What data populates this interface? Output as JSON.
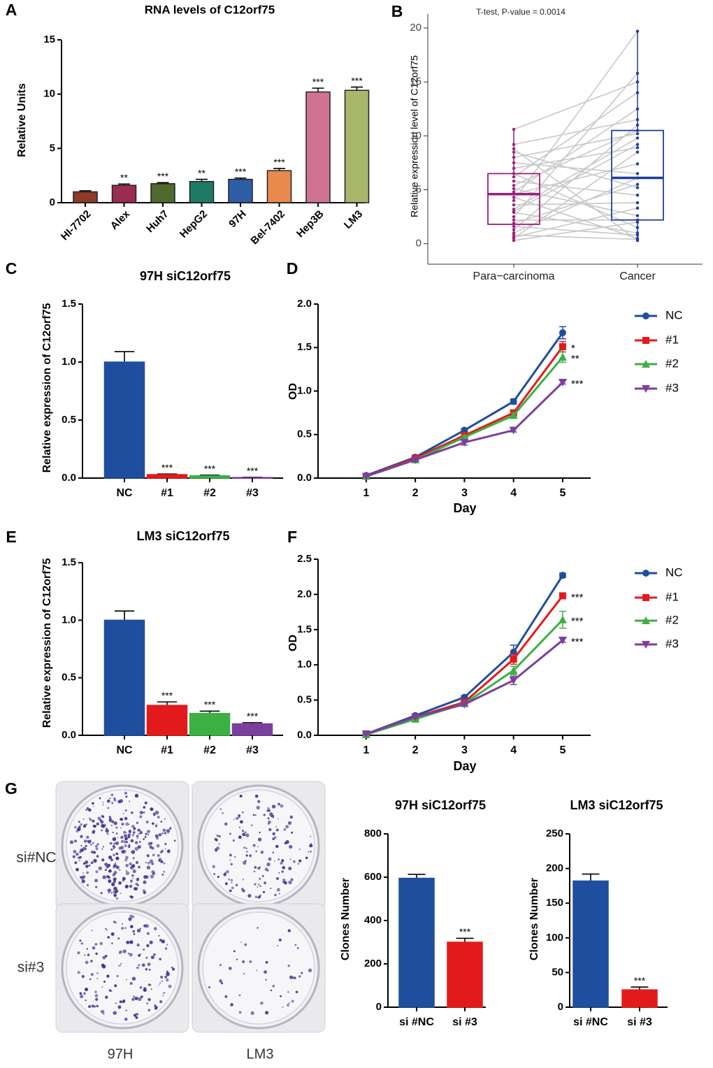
{
  "chart_data": [
    {
      "panel": "A",
      "type": "bar",
      "title": "RNA levels of C12orf75",
      "ylabel": "Relative Units",
      "categories": [
        "HI-7702",
        "Alex",
        "Huh7",
        "HepG2",
        "97H",
        "Bel-7402",
        "Hep3B",
        "LM3"
      ],
      "values": [
        1.0,
        1.6,
        1.75,
        1.95,
        2.15,
        2.95,
        10.2,
        10.35
      ],
      "errors": [
        0.1,
        0.12,
        0.1,
        0.2,
        0.12,
        0.2,
        0.35,
        0.3
      ],
      "sig_labels": [
        null,
        "**",
        "***",
        "**",
        "***",
        "***",
        "***",
        "***"
      ],
      "colors": [
        "#8e3b2a",
        "#9b2b52",
        "#4e6a2c",
        "#1f7a67",
        "#2f5ea8",
        "#e98a4c",
        "#d07391",
        "#a8b76b"
      ],
      "ylim": [
        0,
        15
      ],
      "yticks": [
        0,
        5,
        10,
        15
      ]
    },
    {
      "panel": "B",
      "type": "box",
      "title": "T-test, P-value = 0.0014",
      "ylabel": "Relative expression level of C12orf75",
      "categories": [
        "Para−carcinoma",
        "Cancer"
      ],
      "colors": [
        "#9b1f7a",
        "#1f3f9e"
      ],
      "boxes": [
        {
          "min": 0.2,
          "q1": 1.8,
          "median": 4.6,
          "q3": 6.5,
          "max": 10.6
        },
        {
          "min": 0.2,
          "q1": 2.2,
          "median": 6.1,
          "q3": 10.5,
          "max": 19.7
        }
      ],
      "values": [
        [
          0.3,
          0.5,
          0.8,
          1.0,
          1.3,
          1.6,
          1.9,
          2.2,
          2.5,
          2.9,
          3.2,
          3.6,
          4.0,
          4.3,
          4.6,
          4.8,
          5.1,
          5.4,
          5.8,
          6.2,
          6.5,
          7.0,
          7.5,
          8.0,
          8.5,
          8.8,
          9.2,
          10.6,
          0.6,
          3.0
        ],
        [
          2.0,
          8.5,
          0.4,
          6.1,
          11.0,
          0.8,
          5.5,
          2.2,
          15.8,
          1.0,
          9.8,
          3.8,
          19.7,
          0.5,
          7.4,
          12.5,
          2.6,
          10.5,
          4.5,
          14.0,
          1.5,
          8.9,
          6.5,
          10.2,
          5.2,
          0.3,
          11.5,
          15.0,
          3.3,
          9.2
        ]
      ],
      "ylim": [
        -1.9,
        21.3
      ],
      "yticks": [
        0,
        5,
        10,
        15,
        20
      ]
    },
    {
      "panel": "C",
      "type": "bar",
      "title": "97H siC12orf75",
      "ylabel": "Relative expression of C12orf75",
      "categories": [
        "NC",
        "#1",
        "#2",
        "#3"
      ],
      "values": [
        1.0,
        0.03,
        0.02,
        0.005
      ],
      "errors": [
        0.09,
        0.005,
        0.005,
        0.002
      ],
      "sig_labels": [
        null,
        "***",
        "***",
        "***"
      ],
      "colors": [
        "#1f4e9e",
        "#e31a1c",
        "#3cb043",
        "#7b3f9e"
      ],
      "ylim": [
        0,
        1.5
      ],
      "yticks": [
        {
          "value": 0,
          "label": "0.0"
        },
        0.5,
        {
          "value": 1,
          "label": "1.0"
        },
        1.5
      ]
    },
    {
      "panel": "D",
      "type": "line",
      "ylabel": "OD",
      "xlabel": "Day",
      "x": [
        1,
        2,
        3,
        4,
        5
      ],
      "xlim": [
        0.02,
        5.57
      ],
      "xticks": [
        1,
        2,
        3,
        4,
        5
      ],
      "ylim": [
        0,
        2
      ],
      "yticks": [
        {
          "value": 0,
          "label": "0.0"
        },
        0.5,
        {
          "value": 1,
          "label": "1.0"
        },
        1.5,
        {
          "value": 2,
          "label": "2.0"
        }
      ],
      "series": [
        {
          "name": "NC",
          "color": "#1f4e9e",
          "marker": "circle",
          "values": [
            0.03,
            0.24,
            0.55,
            0.88,
            1.67
          ],
          "errors": [
            0.01,
            0.02,
            0.02,
            0.03,
            0.07
          ]
        },
        {
          "name": "#1",
          "color": "#e31a1c",
          "marker": "square",
          "values": [
            0.02,
            0.23,
            0.49,
            0.75,
            1.51
          ],
          "errors": [
            0.01,
            0.02,
            0.02,
            0.03,
            0.06
          ],
          "annotation": "*"
        },
        {
          "name": "#2",
          "color": "#3cb043",
          "marker": "triangle-up",
          "values": [
            0.02,
            0.21,
            0.47,
            0.72,
            1.39
          ],
          "errors": [
            0.01,
            0.02,
            0.02,
            0.03,
            0.06
          ],
          "annotation": "**"
        },
        {
          "name": "#3",
          "color": "#7b3f9e",
          "marker": "triangle-down",
          "values": [
            0.02,
            0.21,
            0.41,
            0.55,
            1.1
          ],
          "errors": [
            0.01,
            0.02,
            0.03,
            0.02,
            0.02
          ],
          "annotation": "***"
        }
      ]
    },
    {
      "panel": "E",
      "type": "bar",
      "title": "LM3 siC12orf75",
      "ylabel": "Relative expression of C12orf75",
      "categories": [
        "NC",
        "#1",
        "#2",
        "#3"
      ],
      "values": [
        1.0,
        0.26,
        0.19,
        0.1
      ],
      "errors": [
        0.08,
        0.03,
        0.02,
        0.01
      ],
      "sig_labels": [
        null,
        "***",
        "***",
        "***"
      ],
      "colors": [
        "#1f4e9e",
        "#e31a1c",
        "#3cb043",
        "#7b3f9e"
      ],
      "ylim": [
        0,
        1.5
      ],
      "yticks": [
        {
          "value": 0,
          "label": "0.0"
        },
        0.5,
        {
          "value": 1,
          "label": "1.0"
        },
        1.5
      ]
    },
    {
      "panel": "F",
      "type": "line",
      "ylabel": "OD",
      "xlabel": "Day",
      "x": [
        1,
        2,
        3,
        4,
        5
      ],
      "xlim": [
        0.02,
        5.57
      ],
      "xticks": [
        1,
        2,
        3,
        4,
        5
      ],
      "ylim": [
        0,
        2.5
      ],
      "yticks": [
        {
          "value": 0,
          "label": "0.0"
        },
        0.5,
        {
          "value": 1,
          "label": "1.0"
        },
        1.5,
        {
          "value": 2,
          "label": "2.0"
        },
        2.5
      ],
      "series": [
        {
          "name": "NC",
          "color": "#1f4e9e",
          "marker": "circle",
          "values": [
            0.02,
            0.28,
            0.54,
            1.18,
            2.27
          ],
          "errors": [
            0.01,
            0.02,
            0.02,
            0.1,
            0.03
          ]
        },
        {
          "name": "#1",
          "color": "#e31a1c",
          "marker": "square",
          "values": [
            0.02,
            0.26,
            0.47,
            1.08,
            1.98
          ],
          "errors": [
            0.01,
            0.02,
            0.03,
            0.07,
            0.03
          ],
          "annotation": "***"
        },
        {
          "name": "#2",
          "color": "#3cb043",
          "marker": "triangle-up",
          "values": [
            0.01,
            0.23,
            0.45,
            0.92,
            1.64
          ],
          "errors": [
            0.01,
            0.02,
            0.02,
            0.06,
            0.12
          ],
          "annotation": "***"
        },
        {
          "name": "#3",
          "color": "#7b3f9e",
          "marker": "triangle-down",
          "values": [
            0.02,
            0.26,
            0.44,
            0.78,
            1.35
          ],
          "errors": [
            0.01,
            0.02,
            0.02,
            0.06,
            0.03
          ],
          "annotation": "***"
        }
      ]
    },
    {
      "type": "bar",
      "title": "97H siC12orf75",
      "ylabel": "Clones Number",
      "categories": [
        "si #NC",
        "si #3"
      ],
      "values": [
        595,
        300
      ],
      "errors": [
        18,
        18
      ],
      "sig_labels": [
        null,
        "***"
      ],
      "colors": [
        "#1f4e9e",
        "#e31a1c"
      ],
      "ylim": [
        0,
        800
      ],
      "yticks": [
        0,
        200,
        400,
        600,
        800
      ]
    },
    {
      "type": "bar",
      "title": "LM3 siC12orf75",
      "ylabel": "Clones Number",
      "categories": [
        "si #NC",
        "si #3"
      ],
      "values": [
        182,
        25
      ],
      "errors": [
        10,
        4
      ],
      "sig_labels": [
        null,
        "***"
      ],
      "colors": [
        "#1f4e9e",
        "#e31a1c"
      ],
      "ylim": [
        0,
        250
      ],
      "yticks": [
        0,
        50,
        100,
        150,
        200,
        250
      ]
    }
  ],
  "photo_panel": {
    "panel": "G",
    "row_labels": [
      "si#NC",
      "si#3"
    ],
    "column_labels": [
      "97H",
      "LM3"
    ]
  }
}
